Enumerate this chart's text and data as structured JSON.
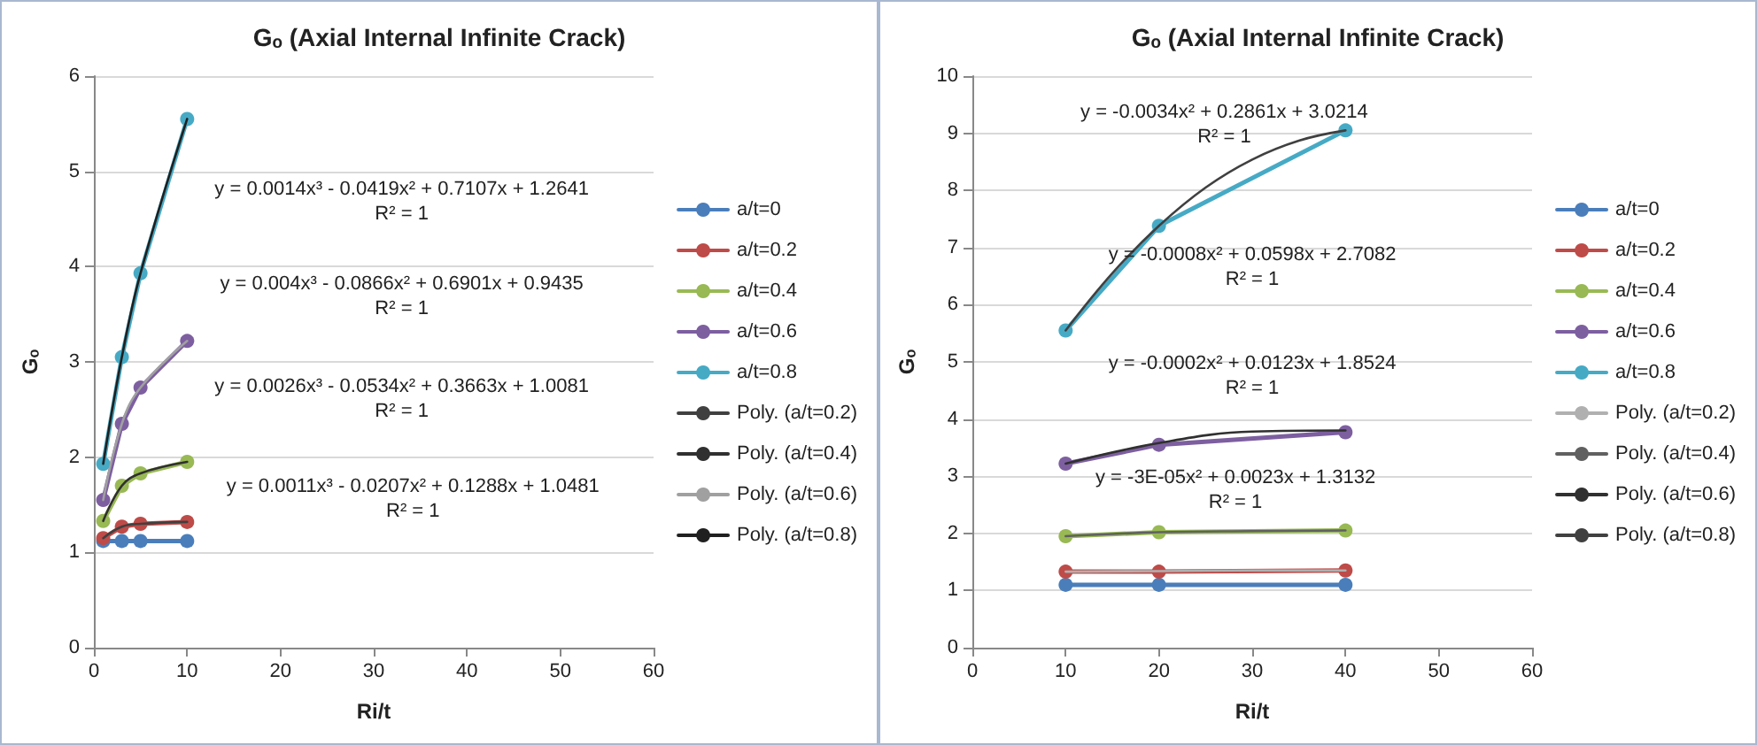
{
  "chart_data": [
    {
      "type": "line",
      "title": "Gₒ (Axial Internal Infinite Crack)",
      "xlabel": "Ri/t",
      "ylabel": "Gₒ",
      "x": [
        1,
        3,
        5,
        10
      ],
      "series": [
        {
          "name": "a/t=0",
          "color": "#4a7ebb",
          "values": [
            1.12,
            1.12,
            1.12,
            1.12
          ]
        },
        {
          "name": "a/t=0.2",
          "color": "#be4b48",
          "values": [
            1.15,
            1.27,
            1.3,
            1.32
          ]
        },
        {
          "name": "a/t=0.4",
          "color": "#98b954",
          "values": [
            1.33,
            1.7,
            1.83,
            1.95
          ]
        },
        {
          "name": "a/t=0.6",
          "color": "#7d5fa0",
          "values": [
            1.55,
            2.35,
            2.73,
            3.22
          ]
        },
        {
          "name": "a/t=0.8",
          "color": "#46aac5",
          "values": [
            1.93,
            3.05,
            3.93,
            5.55
          ]
        },
        {
          "name": "Poly. (a/t=0.2)",
          "type": "line",
          "marker": "none",
          "color": "#404040",
          "x": [
            1,
            3,
            5,
            10
          ],
          "values": [
            1.15,
            1.27,
            1.3,
            1.32
          ]
        },
        {
          "name": "Poly. (a/t=0.4)",
          "type": "line",
          "marker": "none",
          "color": "#303030",
          "x": [
            1,
            3,
            5,
            10
          ],
          "values": [
            1.33,
            1.7,
            1.83,
            1.95
          ]
        },
        {
          "name": "Poly. (a/t=0.6)",
          "type": "line",
          "marker": "none",
          "color": "#a0a0a0",
          "x": [
            1,
            3,
            5,
            10
          ],
          "values": [
            1.55,
            2.35,
            2.73,
            3.22
          ]
        },
        {
          "name": "Poly. (a/t=0.8)",
          "type": "line",
          "marker": "none",
          "color": "#202020",
          "x": [
            1,
            3,
            5,
            10
          ],
          "values": [
            1.93,
            3.05,
            3.93,
            5.55
          ]
        }
      ],
      "annotations": [
        "y = 0.0014x³ - 0.0419x² + 0.7107x + 1.2641\nR² = 1",
        "y = 0.004x³ - 0.0866x² + 0.6901x + 0.9435\nR² = 1",
        "y = 0.0026x³ - 0.0534x² + 0.3663x + 1.0081\nR² = 1",
        "y = 0.0011x³ - 0.0207x² + 0.1288x + 1.0481\nR² = 1"
      ],
      "xlim": [
        0,
        60
      ],
      "xticks": [
        0,
        10,
        20,
        30,
        40,
        50,
        60
      ],
      "ylim": [
        0,
        6
      ],
      "yticks": [
        0,
        1,
        2,
        3,
        4,
        5,
        6
      ],
      "grid": "y",
      "legend": "right",
      "marker": "circle"
    },
    {
      "type": "line",
      "title": "Gₒ (Axial Internal Infinite Crack)",
      "xlabel": "Ri/t",
      "ylabel": "Gₒ",
      "x": [
        10,
        20,
        40
      ],
      "series": [
        {
          "name": "a/t=0",
          "color": "#4a7ebb",
          "values": [
            1.1,
            1.1,
            1.1
          ]
        },
        {
          "name": "a/t=0.2",
          "color": "#be4b48",
          "values": [
            1.33,
            1.33,
            1.35
          ]
        },
        {
          "name": "a/t=0.4",
          "color": "#98b954",
          "values": [
            1.95,
            2.02,
            2.05
          ]
        },
        {
          "name": "a/t=0.6",
          "color": "#7d5fa0",
          "values": [
            3.22,
            3.55,
            3.77
          ]
        },
        {
          "name": "a/t=0.8",
          "color": "#46aac5",
          "values": [
            5.55,
            7.38,
            9.05
          ]
        },
        {
          "name": "Poly. (a/t=0.2)",
          "type": "line",
          "marker": "none",
          "color": "#b0b0b0",
          "x": [
            10,
            20,
            30,
            40
          ],
          "values": [
            1.33,
            1.34,
            1.35,
            1.35
          ]
        },
        {
          "name": "Poly. (a/t=0.4)",
          "type": "line",
          "marker": "none",
          "color": "#606060",
          "x": [
            10,
            20,
            30,
            40
          ],
          "values": [
            1.95,
            2.02,
            2.04,
            2.05
          ]
        },
        {
          "name": "Poly. (a/t=0.6)",
          "type": "line",
          "marker": "none",
          "color": "#303030",
          "x": [
            10,
            20,
            30,
            40
          ],
          "values": [
            3.22,
            3.58,
            3.78,
            3.8
          ]
        },
        {
          "name": "Poly. (a/t=0.8)",
          "type": "line",
          "marker": "none",
          "color": "#404040",
          "x": [
            10,
            15,
            20,
            25,
            30,
            35,
            40
          ],
          "values": [
            5.55,
            6.55,
            7.38,
            8.05,
            8.54,
            8.87,
            9.05
          ]
        }
      ],
      "annotations": [
        "y = -0.0034x² + 0.2861x + 3.0214\nR² = 1",
        "y = -0.0008x² + 0.0598x + 2.7082\nR² = 1",
        "y = -0.0002x² + 0.0123x + 1.8524\nR² = 1",
        "y = -3E-05x² + 0.0023x + 1.3132\nR² = 1"
      ],
      "xlim": [
        0,
        60
      ],
      "xticks": [
        0,
        10,
        20,
        30,
        40,
        50,
        60
      ],
      "ylim": [
        0,
        10
      ],
      "yticks": [
        0,
        1,
        2,
        3,
        4,
        5,
        6,
        7,
        8,
        9,
        10
      ],
      "grid": "y",
      "legend": "right",
      "marker": "circle"
    }
  ]
}
